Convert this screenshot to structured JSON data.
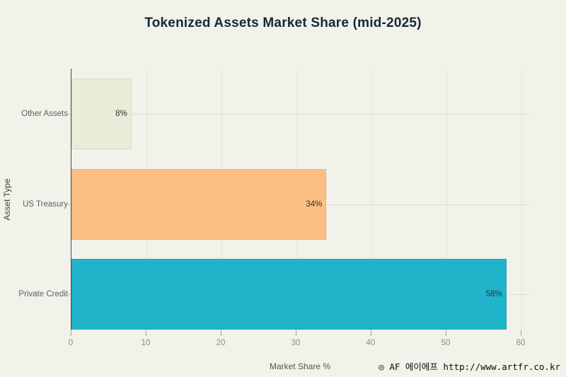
{
  "watermark": "◎ AF 에이에프 http://www.artfr.co.kr",
  "colors": {
    "background": "#f2f1ea",
    "title": "#13293a",
    "axis_line": "#4d4d4d",
    "vertical_gridline": "#e4e4dc",
    "horizontal_gridline": "#dddcd4",
    "tick_label": "#8b8b85",
    "category_label": "#5f5f5f",
    "value_label": "#333333"
  },
  "chart_data": {
    "type": "bar",
    "orientation": "horizontal",
    "title": "Tokenized Assets Market Share (mid-2025)",
    "categories": [
      "Other Assets",
      "US Treasury",
      "Private Credit"
    ],
    "values": [
      8,
      34,
      58
    ],
    "value_labels": [
      "8%",
      "34%",
      "58%"
    ],
    "bar_colors": [
      "#ebebd9",
      "#fdbe82",
      "#20b4cb"
    ],
    "xlabel": "Market Share %",
    "ylabel": "Asset Type",
    "x_ticks": [
      0,
      10,
      20,
      30,
      40,
      50,
      60
    ],
    "xlim": [
      0,
      61.1
    ],
    "grid": true,
    "legend": false,
    "category_order_top_to_bottom": [
      "Other Assets",
      "US Treasury",
      "Private Credit"
    ]
  }
}
